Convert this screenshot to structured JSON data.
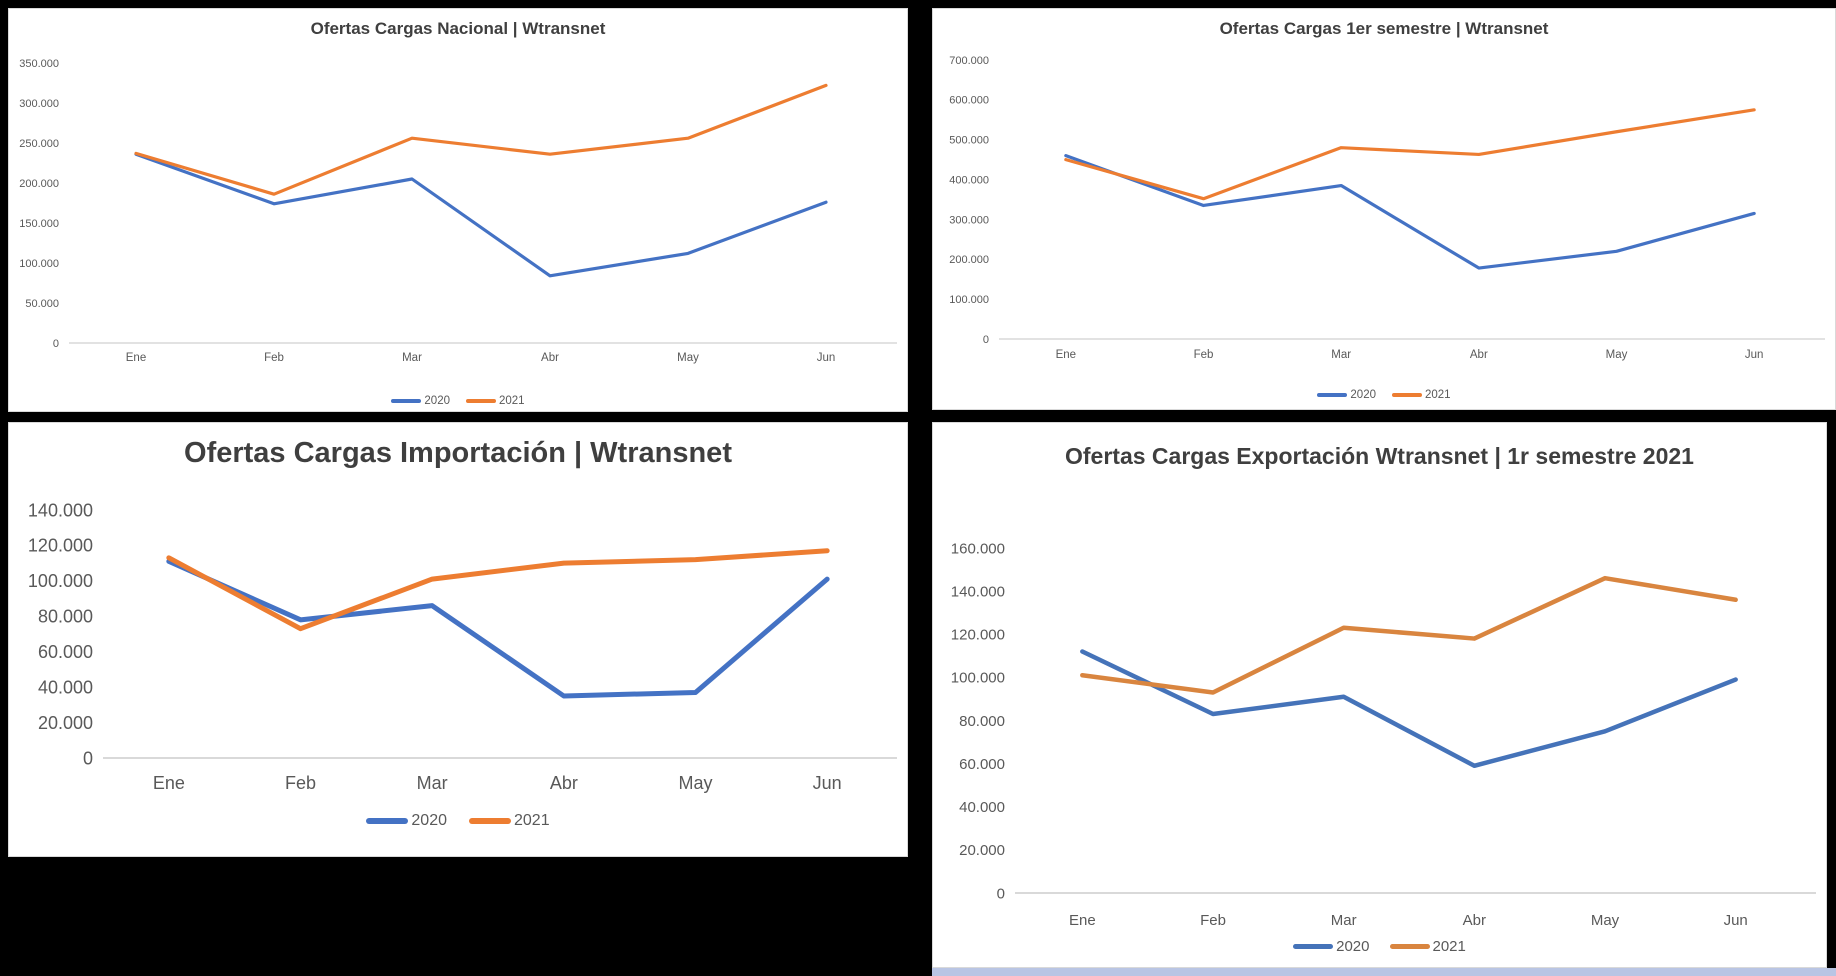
{
  "page": {
    "background": "#000000",
    "panel_background": "#FFFFFF",
    "panel_border": "#D9D9D9",
    "title_color": "#3F3F3F",
    "axis_text_color": "#595959",
    "axis_line_color": "#D9D9D9",
    "bottom_strip_color": "#B9C5E4"
  },
  "chart_data": [
    {
      "id": "nacional",
      "type": "line",
      "title": "Ofertas Cargas Nacional | Wtransnet",
      "categories": [
        "Ene",
        "Feb",
        "Mar",
        "Abr",
        "May",
        "Jun"
      ],
      "series": [
        {
          "name": "2020",
          "color": "#4472C4",
          "values": [
            236000,
            174000,
            205000,
            84000,
            112000,
            176000
          ]
        },
        {
          "name": "2021",
          "color": "#ED7D31",
          "values": [
            237000,
            186000,
            256000,
            236000,
            256000,
            322000
          ]
        }
      ],
      "ylim": [
        0,
        350000
      ],
      "ytick_step": 50000,
      "ytick_labels": [
        "0",
        "50.000",
        "100.000",
        "150.000",
        "200.000",
        "250.000",
        "300.000",
        "350.000"
      ],
      "grid": false,
      "legend_position": "bottom"
    },
    {
      "id": "semestre",
      "type": "line",
      "title": "Ofertas Cargas 1er semestre | Wtransnet",
      "categories": [
        "Ene",
        "Feb",
        "Mar",
        "Abr",
        "May",
        "Jun"
      ],
      "series": [
        {
          "name": "2020",
          "color": "#4472C4",
          "values": [
            460000,
            335000,
            385000,
            178000,
            220000,
            315000
          ]
        },
        {
          "name": "2021",
          "color": "#ED7D31",
          "values": [
            450000,
            352000,
            480000,
            463000,
            520000,
            575000
          ]
        }
      ],
      "ylim": [
        0,
        700000
      ],
      "ytick_step": 100000,
      "ytick_labels": [
        "0",
        "100.000",
        "200.000",
        "300.000",
        "400.000",
        "500.000",
        "600.000",
        "700.000"
      ],
      "grid": false,
      "legend_position": "bottom"
    },
    {
      "id": "importacion",
      "type": "line",
      "title": "Ofertas Cargas Importación | Wtransnet",
      "categories": [
        "Ene",
        "Feb",
        "Mar",
        "Abr",
        "May",
        "Jun"
      ],
      "series": [
        {
          "name": "2020",
          "color": "#4472C4",
          "values": [
            111000,
            78000,
            86000,
            35000,
            37000,
            101000
          ]
        },
        {
          "name": "2021",
          "color": "#ED7D31",
          "values": [
            113000,
            73000,
            101000,
            110000,
            112000,
            117000
          ]
        }
      ],
      "ylim": [
        0,
        140000
      ],
      "ytick_step": 20000,
      "ytick_labels": [
        "0",
        "20.000",
        "40.000",
        "60.000",
        "80.000",
        "100.000",
        "120.000",
        "140.000"
      ],
      "grid": false,
      "legend_position": "bottom"
    },
    {
      "id": "exportacion",
      "type": "line",
      "title": "Ofertas Cargas Exportación Wtransnet | 1r semestre 2021",
      "categories": [
        "Ene",
        "Feb",
        "Mar",
        "Abr",
        "May",
        "Jun"
      ],
      "series": [
        {
          "name": "2020",
          "color": "#4573B9",
          "values": [
            112000,
            83000,
            91000,
            59000,
            75000,
            99000
          ]
        },
        {
          "name": "2021",
          "color": "#D9853F",
          "values": [
            101000,
            93000,
            123000,
            118000,
            146000,
            136000
          ]
        }
      ],
      "ylim": [
        0,
        160000
      ],
      "ytick_step": 20000,
      "ytick_labels": [
        "0",
        "20.000",
        "40.000",
        "60.000",
        "80.000",
        "100.000",
        "120.000",
        "140.000",
        "160.000"
      ],
      "grid": false,
      "legend_position": "bottom"
    }
  ]
}
